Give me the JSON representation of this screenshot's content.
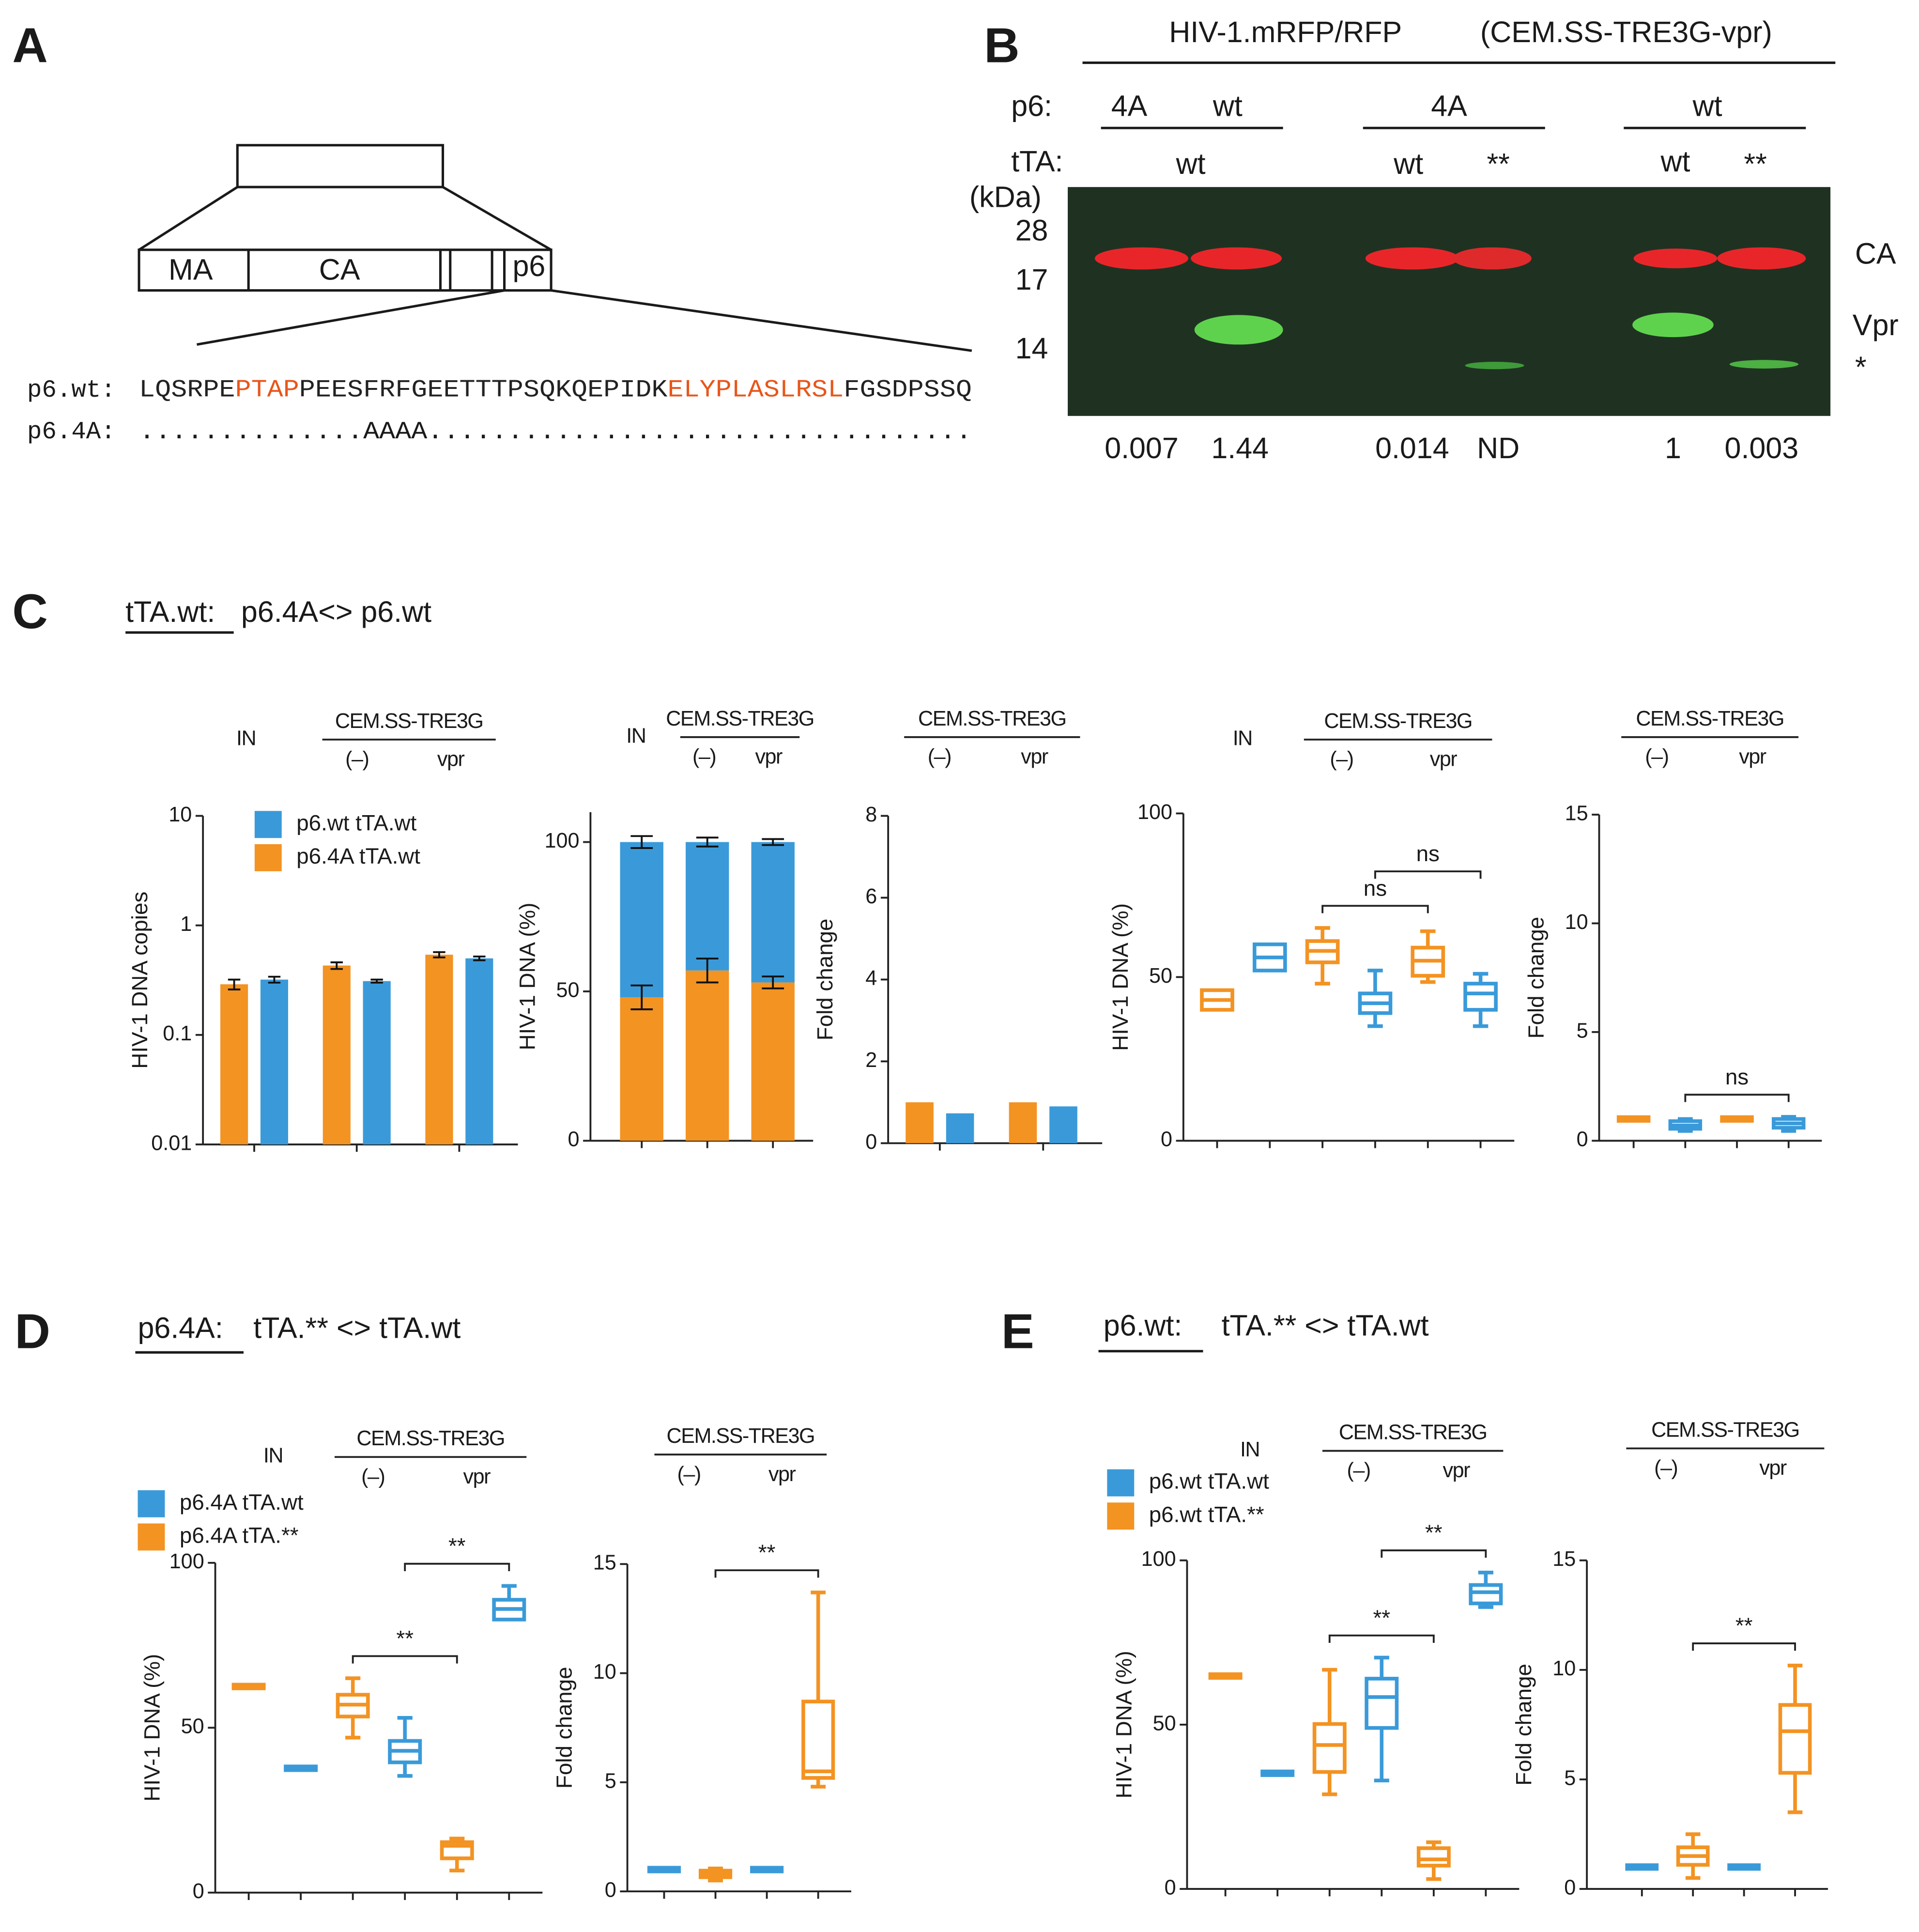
{
  "panel_a": {
    "label": "A",
    "domains": [
      "MA",
      "CA",
      "p6"
    ],
    "wt_label": "p6.wt:",
    "wt_sequence": [
      {
        "text": "LQSRPE",
        "color": "#222222"
      },
      {
        "text": "PTAP",
        "color": "#e8561b"
      },
      {
        "text": "PEESFRFGEETTTPSQKQEPIDK",
        "color": "#222222"
      },
      {
        "text": "ELYPLASLRSL",
        "color": "#e8561b"
      },
      {
        "text": "FGSDPSSQ",
        "color": "#222222"
      }
    ],
    "mutant_label": "p6.4A:",
    "mutant_sequence": "..............AAAA.................................."
  },
  "panel_b": {
    "label": "B",
    "title": "HIV-1.mRFP/RFP",
    "subtitle": "(CEM.SS-TRE3G-vpr)",
    "p6_label": "p6:",
    "p6_groups": [
      "4A",
      "wt",
      "4A",
      "wt"
    ],
    "tta_label": "tTA:",
    "tta": [
      "wt",
      "wt",
      "**",
      "wt",
      "**"
    ],
    "mw_label": "(kDa)",
    "mw_markers": [
      28,
      17,
      14
    ],
    "bands": [
      "CA",
      "Vpr",
      "*"
    ],
    "quantification": [
      0.007,
      1.44,
      0.014,
      "ND",
      1,
      0.003
    ]
  },
  "panels": [
    {
      "label": "C",
      "underlined": "tTA.wt:",
      "title": "p6.4A<> p6.wt"
    },
    {
      "label": "D",
      "underlined": "p6.4A:",
      "title": "tTA.** <> tTA.wt"
    },
    {
      "label": "E",
      "underlined": "p6.wt:",
      "title": "tTA.** <> tTA.wt"
    }
  ],
  "chart_data": [
    {
      "type": "bar",
      "ylabel": "HIV-1 DNA copies",
      "log_scale": true,
      "ylim": [
        0.01,
        10
      ],
      "yticks": [
        0.01,
        0.1,
        1,
        10
      ],
      "header": {
        "input": "IN",
        "group": "CEM.SS-TRE3G",
        "subgroups": [
          "(–)",
          "vpr"
        ]
      },
      "categories": [
        null,
        null,
        null
      ],
      "series": [
        {
          "name": "p6.wt tTA.wt",
          "color": "#3a9ad9",
          "values": [
            0.32,
            0.31,
            0.5
          ],
          "errors": [
            0.02,
            0.01,
            0.02
          ]
        },
        {
          "name": "p6.4A tTA.wt",
          "color": "#f39322",
          "values": [
            0.29,
            0.43,
            0.54
          ],
          "errors": [
            0.03,
            0.03,
            0.03
          ]
        }
      ]
    },
    {
      "type": "stacked_bar",
      "ylabel": "HIV-1 DNA (%)",
      "ylim": [
        0,
        110
      ],
      "yticks": [
        0,
        50,
        100
      ],
      "header": {
        "input": "IN",
        "group": "CEM.SS-TRE3G",
        "subgroups": [
          "(–)",
          "vpr"
        ]
      },
      "categories": [
        null,
        null,
        null
      ],
      "series": [
        {
          "color": "#f39322",
          "values": [
            48,
            57,
            53
          ],
          "errors": [
            4,
            4,
            2
          ]
        },
        {
          "color": "#3a9ad9",
          "values": [
            52,
            43,
            47
          ],
          "errors": [
            2,
            1.5,
            1
          ]
        }
      ]
    },
    {
      "type": "bar",
      "ylabel": "Fold change",
      "ylim": [
        0,
        8
      ],
      "yticks": [
        0,
        2,
        4,
        6,
        8
      ],
      "header": {
        "group": "CEM.SS-TRE3G",
        "subgroups": [
          "(–)",
          "vpr"
        ]
      },
      "categories": [
        null,
        null
      ],
      "series": [
        {
          "color": "#3a9ad9",
          "values": [
            0.73,
            0.9
          ]
        },
        {
          "color": "#f39322",
          "values": [
            1,
            1
          ]
        }
      ]
    },
    {
      "type": "box",
      "ylabel": "HIV-1 DNA (%)",
      "ylim": [
        0,
        100
      ],
      "yticks": [
        0,
        50,
        100
      ],
      "header": {
        "input": "IN",
        "group": "CEM.SS-TRE3G",
        "subgroups": [
          "(–)",
          "vpr"
        ]
      },
      "boxes": [
        {
          "color": "#f39322",
          "stats": [
            40,
            40,
            43,
            46,
            46
          ]
        },
        {
          "color": "#3a9ad9",
          "stats": [
            52,
            52,
            56,
            60,
            60
          ]
        },
        {
          "color": "#f39322",
          "stats": [
            48,
            54.5,
            58,
            61,
            65
          ]
        },
        {
          "color": "#3a9ad9",
          "stats": [
            35,
            39,
            42,
            45,
            52
          ]
        },
        {
          "color": "#f39322",
          "stats": [
            48.5,
            50.4,
            55,
            59,
            64
          ]
        },
        {
          "color": "#3a9ad9",
          "stats": [
            35,
            40,
            45,
            48,
            51
          ]
        }
      ],
      "comparisons": [
        {
          "from": 2,
          "to": 4,
          "label": "ns"
        },
        {
          "from": 3,
          "to": 5,
          "label": "ns"
        }
      ]
    },
    {
      "type": "box",
      "ylabel": "Fold change",
      "ylim": [
        0,
        15
      ],
      "yticks": [
        0,
        5,
        10,
        15
      ],
      "header": {
        "group": "CEM.SS-TRE3G",
        "subgroups": [
          "(–)",
          "vpr"
        ]
      },
      "boxes": [
        {
          "color": "#f39322",
          "stats": [
            1,
            1,
            1,
            1,
            1
          ]
        },
        {
          "color": "#3a9ad9",
          "stats": [
            0.45,
            0.55,
            0.7,
            0.9,
            1
          ]
        },
        {
          "color": "#f39322",
          "stats": [
            1,
            1,
            1,
            1,
            1
          ]
        },
        {
          "color": "#3a9ad9",
          "stats": [
            0.45,
            0.6,
            0.8,
            1,
            1.1
          ]
        }
      ],
      "comparisons": [
        {
          "from": 1,
          "to": 3,
          "label": "ns"
        }
      ]
    },
    {
      "type": "box",
      "ylabel": "HIV-1 DNA (%)",
      "ylim": [
        0,
        100
      ],
      "yticks": [
        0,
        50,
        100
      ],
      "header": {
        "input": "IN",
        "group": "CEM.SS-TRE3G",
        "subgroups": [
          "(–)",
          "vpr"
        ]
      },
      "legend": [
        {
          "name": "p6.4A tTA.wt",
          "color": "#3a9ad9"
        },
        {
          "name": "p6.4A tTA.**",
          "color": "#f39322"
        }
      ],
      "boxes": [
        {
          "color": "#f39322",
          "stats": [
            62,
            62,
            62.5,
            63,
            63
          ]
        },
        {
          "color": "#3a9ad9",
          "stats": [
            37.3,
            37.3,
            37.7,
            38.1,
            38.1
          ]
        },
        {
          "color": "#f39322",
          "stats": [
            47,
            53.4,
            57,
            60,
            65
          ]
        },
        {
          "color": "#3a9ad9",
          "stats": [
            35.4,
            39.5,
            43,
            46,
            53
          ]
        },
        {
          "color": "#f39322",
          "stats": [
            6.7,
            10.4,
            14.2,
            15.3,
            16.4
          ]
        },
        {
          "color": "#3a9ad9",
          "stats": [
            82.8,
            82.8,
            86,
            88.8,
            93
          ]
        }
      ],
      "comparisons": [
        {
          "from": 2,
          "to": 4,
          "label": "**"
        },
        {
          "from": 3,
          "to": 5,
          "label": "**"
        }
      ]
    },
    {
      "type": "box",
      "ylabel": "Fold change",
      "ylim": [
        0,
        15
      ],
      "yticks": [
        0,
        5,
        10,
        15
      ],
      "header": {
        "group": "CEM.SS-TRE3G",
        "subgroups": [
          "(–)",
          "vpr"
        ]
      },
      "boxes": [
        {
          "color": "#3a9ad9",
          "stats": [
            1,
            1,
            1,
            1,
            1
          ]
        },
        {
          "color": "#f39322",
          "stats": [
            0.5,
            0.65,
            0.8,
            0.95,
            1.05
          ]
        },
        {
          "color": "#3a9ad9",
          "stats": [
            1,
            1,
            1,
            1,
            1
          ]
        },
        {
          "color": "#f39322",
          "stats": [
            4.8,
            5.2,
            5.5,
            8.7,
            13.7
          ]
        }
      ],
      "comparisons": [
        {
          "from": 1,
          "to": 3,
          "label": "**"
        }
      ]
    },
    {
      "type": "box",
      "ylabel": "HIV-1 DNA (%)",
      "ylim": [
        0,
        100
      ],
      "yticks": [
        0,
        50,
        100
      ],
      "header": {
        "input": "IN",
        "group": "CEM.SS-TRE3G",
        "subgroups": [
          "(–)",
          "vpr"
        ]
      },
      "legend": [
        {
          "name": "p6.wt tTA.wt",
          "color": "#3a9ad9"
        },
        {
          "name": "p6.wt tTA.**",
          "color": "#f39322"
        }
      ],
      "boxes": [
        {
          "color": "#f39322",
          "stats": [
            64.6,
            64.6,
            64.8,
            65,
            65
          ]
        },
        {
          "color": "#3a9ad9",
          "stats": [
            35,
            35,
            35.2,
            35.4,
            35.4
          ]
        },
        {
          "color": "#f39322",
          "stats": [
            28.8,
            35.6,
            43.8,
            50.2,
            66.7
          ]
        },
        {
          "color": "#3a9ad9",
          "stats": [
            33,
            49,
            58.4,
            64,
            70.4
          ]
        },
        {
          "color": "#f39322",
          "stats": [
            3,
            7.1,
            9,
            12.4,
            14.2
          ]
        },
        {
          "color": "#3a9ad9",
          "stats": [
            85.8,
            86.9,
            90.3,
            92.5,
            96.3
          ]
        }
      ],
      "comparisons": [
        {
          "from": 2,
          "to": 4,
          "label": "**"
        },
        {
          "from": 3,
          "to": 5,
          "label": "**"
        }
      ]
    },
    {
      "type": "box",
      "ylabel": "Fold change",
      "ylim": [
        0,
        15
      ],
      "yticks": [
        0,
        5,
        10,
        15
      ],
      "header": {
        "group": "CEM.SS-TRE3G",
        "subgroups": [
          "(–)",
          "vpr"
        ]
      },
      "boxes": [
        {
          "color": "#3a9ad9",
          "stats": [
            1,
            1,
            1,
            1,
            1
          ]
        },
        {
          "color": "#f39322",
          "stats": [
            0.5,
            1.1,
            1.5,
            1.9,
            2.5
          ]
        },
        {
          "color": "#3a9ad9",
          "stats": [
            1,
            1,
            1,
            1,
            1
          ]
        },
        {
          "color": "#f39322",
          "stats": [
            3.5,
            5.3,
            7.2,
            8.4,
            10.2
          ]
        }
      ],
      "comparisons": [
        {
          "from": 1,
          "to": 3,
          "label": "**"
        }
      ]
    }
  ]
}
